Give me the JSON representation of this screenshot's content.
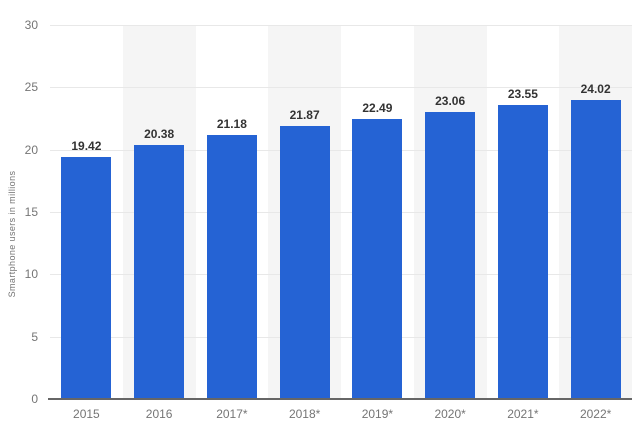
{
  "chart_data": {
    "type": "bar",
    "title": "",
    "xlabel": "",
    "ylabel": "Smartphone users in millions",
    "categories": [
      "2015",
      "2016",
      "2017*",
      "2018*",
      "2019*",
      "2020*",
      "2021*",
      "2022*"
    ],
    "values": [
      19.42,
      20.38,
      21.18,
      21.87,
      22.49,
      23.06,
      23.55,
      24.02
    ],
    "value_labels": [
      "19.42",
      "20.38",
      "21.18",
      "21.87",
      "22.49",
      "23.06",
      "23.55",
      "24.02"
    ],
    "ylim": [
      0,
      30
    ],
    "yticks": [
      0,
      5,
      10,
      15,
      20,
      25,
      30
    ],
    "grid": true,
    "legend": "none",
    "band_pattern": "alternating-columns-even-white-odd-gray",
    "colors": {
      "bar": "#2563d4",
      "band": "#f5f5f5",
      "grid": "#e8e8e8",
      "axis_line": "#666666",
      "tick_label": "#757575",
      "value_label": "#333333",
      "axis_title": "#757575",
      "background": "#ffffff"
    }
  }
}
